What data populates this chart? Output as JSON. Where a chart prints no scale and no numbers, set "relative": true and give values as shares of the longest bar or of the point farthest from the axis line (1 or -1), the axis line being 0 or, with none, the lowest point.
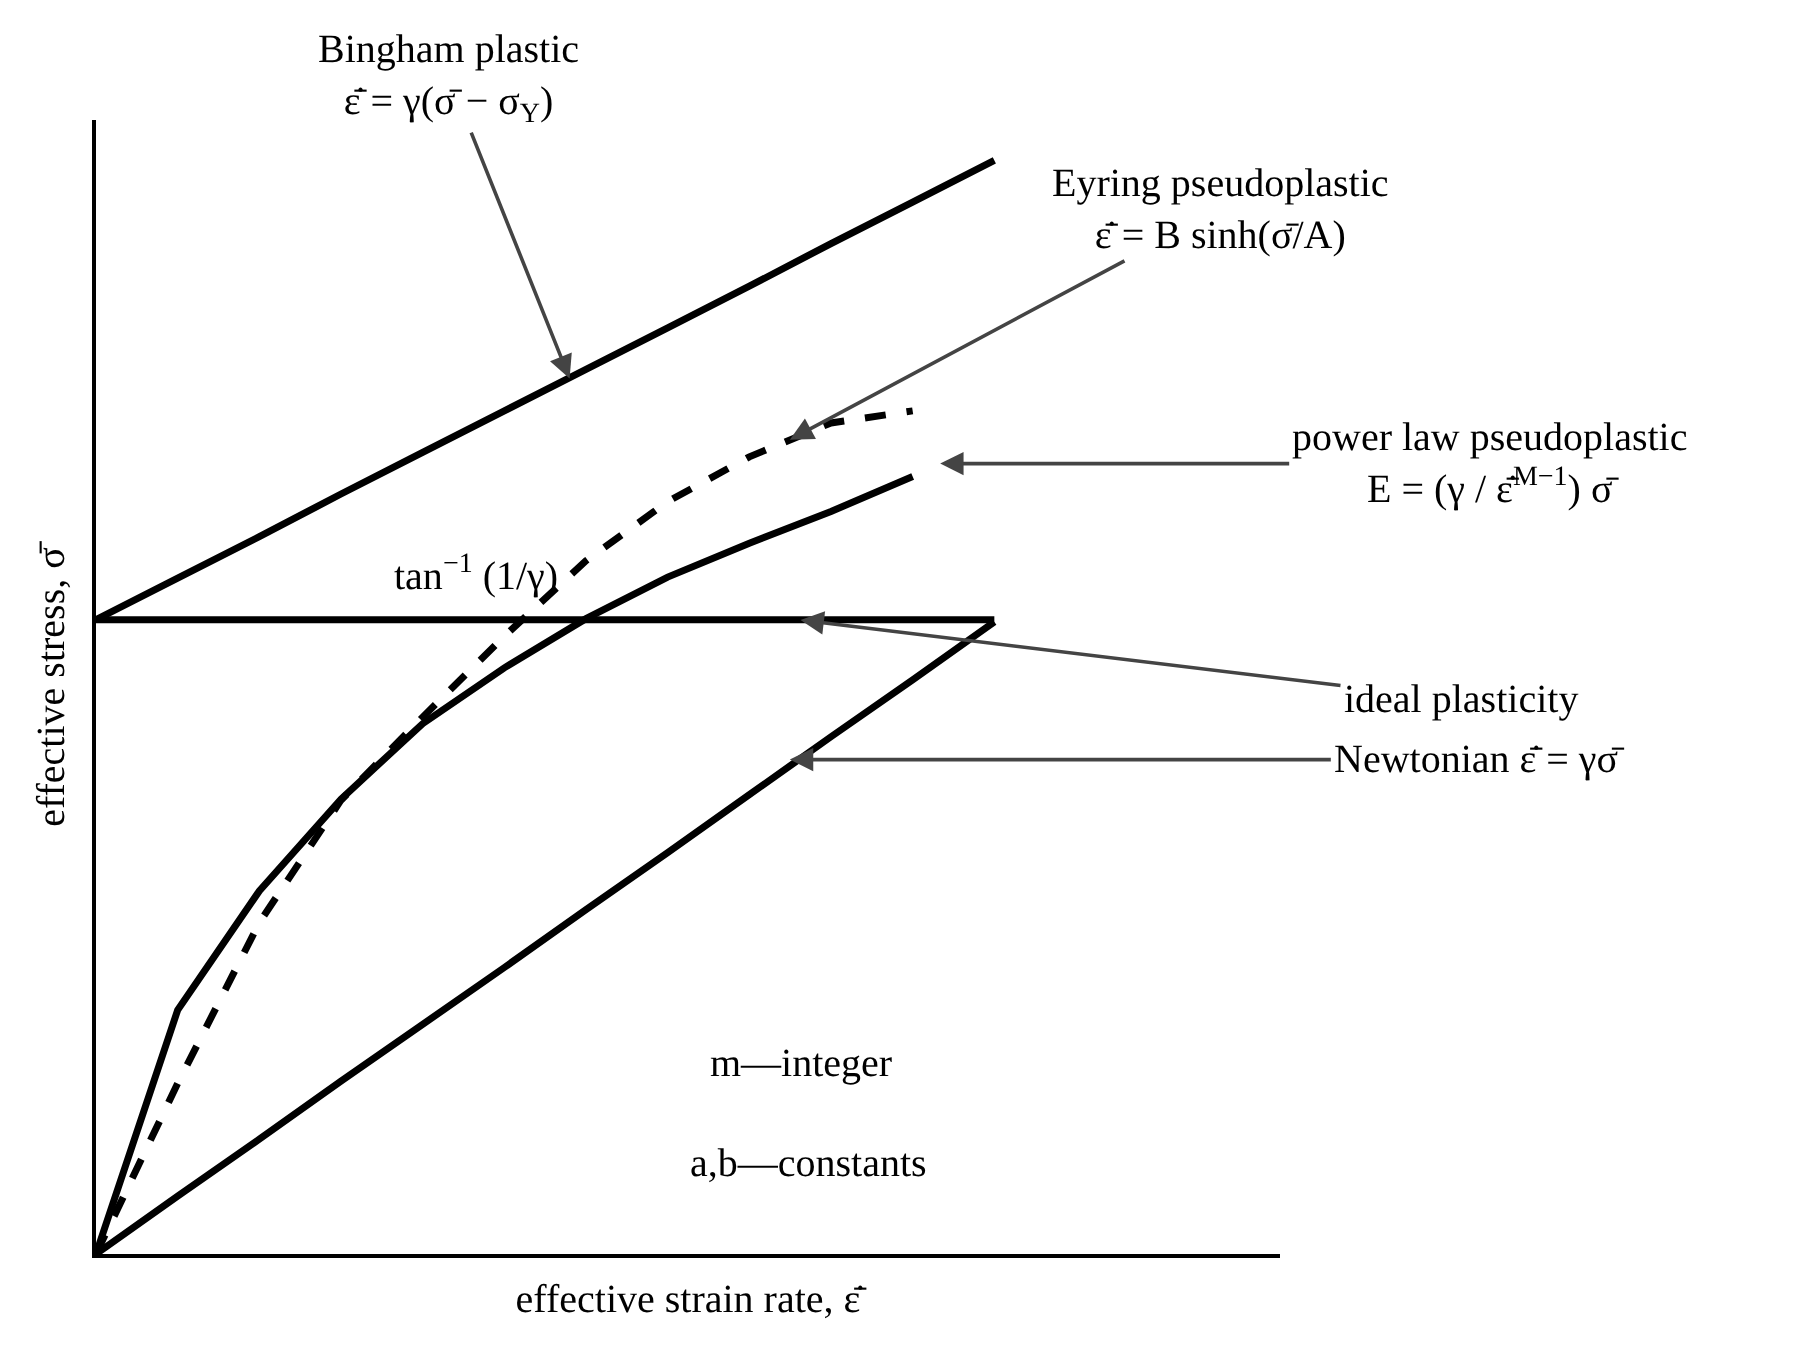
{
  "chart_data": {
    "type": "line",
    "relative": true,
    "xlabel": "effective strain rate, ε̄̇",
    "ylabel": "effective stress, σ̄",
    "marker": "none",
    "grid": false,
    "categories": [
      null,
      null,
      null,
      null,
      null,
      null,
      null,
      null,
      null,
      null,
      null,
      null
    ],
    "series": [
      {
        "color": "#000000",
        "line_style": "solid",
        "values": [
          0.58,
          0.618,
          0.656,
          0.695,
          0.733,
          0.771,
          0.809,
          0.847,
          0.885,
          0.924,
          0.962,
          1.0
        ]
      },
      {
        "color": "#000000",
        "line_style": "solid",
        "values": [
          0.58,
          0.58,
          0.58,
          0.58,
          0.58,
          0.58,
          0.58,
          0.58,
          0.58,
          0.58,
          0.58,
          0.58
        ]
      },
      {
        "color": "#000000",
        "line_style": "solid",
        "values": [
          0,
          0.053,
          0.105,
          0.158,
          0.21,
          0.262,
          0.315,
          0.367,
          0.42,
          0.473,
          0.525,
          0.578
        ]
      },
      {
        "color": "#000000",
        "line_style": "solid",
        "values": [
          0,
          0.223,
          0.332,
          0.416,
          0.485,
          0.536,
          0.581,
          0.619,
          0.65,
          0.679,
          0.711,
          null
        ]
      },
      {
        "color": "#000000",
        "line_style": "dashed",
        "values": [
          0,
          0.156,
          0.303,
          0.415,
          0.491,
          0.565,
          0.634,
          0.688,
          0.729,
          0.76,
          0.771,
          null
        ]
      }
    ],
    "annotations": [
      "Bingham plastic\nε̄̇ = γ(σ̄ − σ$_{Y}$)",
      "Eyring pseudoplastic\nε̄̇ = B sinh(σ̄/A)",
      "power law pseudoplastic\nE = (γ / ε̄̇$^{M−1}$) σ̄",
      "ideal plasticity",
      "Newtonian ε̄̇ = γσ̄",
      "tan$^{−1}$ (1/γ)",
      "m—integer",
      "a,b—constants"
    ]
  }
}
